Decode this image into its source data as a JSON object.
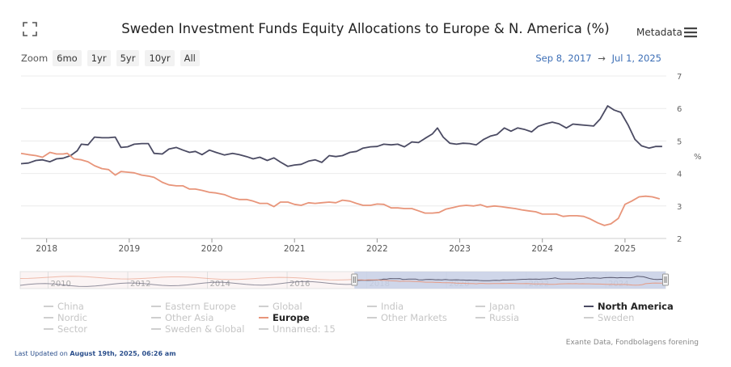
{
  "header": {
    "title": "Sweden Investment Funds Equity Allocations to Europe & N. America (%)",
    "metadata_label": "Metadata"
  },
  "zoom": {
    "label": "Zoom",
    "buttons": [
      "6mo",
      "1yr",
      "5yr",
      "10yr",
      "All"
    ]
  },
  "range": {
    "start": "Sep 8, 2017",
    "arrow": "→",
    "end": "Jul 1, 2025"
  },
  "legend": [
    {
      "label": "China",
      "active": false
    },
    {
      "label": "Eastern Europe",
      "active": false
    },
    {
      "label": "Global",
      "active": false
    },
    {
      "label": "India",
      "active": false
    },
    {
      "label": "Japan",
      "active": false
    },
    {
      "label": "North America",
      "active": true
    },
    {
      "label": "Nordic",
      "active": false
    },
    {
      "label": "Other Asia",
      "active": false
    },
    {
      "label": "Europe",
      "active": true
    },
    {
      "label": "Other Markets",
      "active": false
    },
    {
      "label": "Russia",
      "active": false
    },
    {
      "label": "Sweden",
      "active": false
    },
    {
      "label": "Sector",
      "active": false
    },
    {
      "label": "Sweden & Global",
      "active": false
    },
    {
      "label": "Unnamed: 15",
      "active": false
    }
  ],
  "source": "Exante Data, Fondbolagens forening",
  "last_updated": {
    "prefix": "Last Updated on ",
    "value": "August 19th, 2025, 06:26 am"
  },
  "colors": {
    "north_america": "#4b4b63",
    "europe": "#e8957a",
    "navigator_fill": "#c7d0e6",
    "range_text": "#3d6fb6"
  },
  "chart_data": {
    "type": "line",
    "title": "Sweden Investment Funds Equity Allocations to Europe & N. America (%)",
    "ylabel": "%",
    "ylim": [
      2,
      7
    ],
    "yticks": [
      2,
      3,
      4,
      5,
      6,
      7
    ],
    "xlim": [
      2017.69,
      2025.5
    ],
    "xticks": [
      {
        "v": 2018,
        "label": "2018"
      },
      {
        "v": 2019,
        "label": "2019"
      },
      {
        "v": 2020,
        "label": "2020"
      },
      {
        "v": 2021,
        "label": "2021"
      },
      {
        "v": 2022,
        "label": "2022"
      },
      {
        "v": 2023,
        "label": "2023"
      },
      {
        "v": 2024,
        "label": "2024"
      },
      {
        "v": 2025,
        "label": "2025"
      }
    ],
    "series": [
      {
        "name": "North America",
        "color": "#4b4b63",
        "points": [
          [
            2017.69,
            4.3
          ],
          [
            2017.78,
            4.32
          ],
          [
            2017.87,
            4.4
          ],
          [
            2017.95,
            4.42
          ],
          [
            2018.04,
            4.36
          ],
          [
            2018.12,
            4.45
          ],
          [
            2018.2,
            4.47
          ],
          [
            2018.29,
            4.55
          ],
          [
            2018.37,
            4.7
          ],
          [
            2018.42,
            4.9
          ],
          [
            2018.5,
            4.88
          ],
          [
            2018.58,
            5.12
          ],
          [
            2018.67,
            5.1
          ],
          [
            2018.75,
            5.1
          ],
          [
            2018.83,
            5.12
          ],
          [
            2018.9,
            4.8
          ],
          [
            2018.98,
            4.82
          ],
          [
            2019.06,
            4.9
          ],
          [
            2019.15,
            4.92
          ],
          [
            2019.23,
            4.92
          ],
          [
            2019.3,
            4.62
          ],
          [
            2019.4,
            4.6
          ],
          [
            2019.48,
            4.75
          ],
          [
            2019.57,
            4.8
          ],
          [
            2019.65,
            4.72
          ],
          [
            2019.73,
            4.65
          ],
          [
            2019.8,
            4.68
          ],
          [
            2019.88,
            4.58
          ],
          [
            2019.97,
            4.72
          ],
          [
            2020.05,
            4.65
          ],
          [
            2020.15,
            4.57
          ],
          [
            2020.25,
            4.62
          ],
          [
            2020.33,
            4.58
          ],
          [
            2020.42,
            4.52
          ],
          [
            2020.5,
            4.45
          ],
          [
            2020.58,
            4.5
          ],
          [
            2020.67,
            4.4
          ],
          [
            2020.75,
            4.48
          ],
          [
            2020.83,
            4.35
          ],
          [
            2020.92,
            4.22
          ],
          [
            2021.0,
            4.26
          ],
          [
            2021.08,
            4.28
          ],
          [
            2021.17,
            4.38
          ],
          [
            2021.25,
            4.42
          ],
          [
            2021.33,
            4.34
          ],
          [
            2021.42,
            4.55
          ],
          [
            2021.5,
            4.52
          ],
          [
            2021.58,
            4.55
          ],
          [
            2021.67,
            4.65
          ],
          [
            2021.75,
            4.68
          ],
          [
            2021.83,
            4.78
          ],
          [
            2021.92,
            4.82
          ],
          [
            2022.0,
            4.83
          ],
          [
            2022.08,
            4.9
          ],
          [
            2022.17,
            4.88
          ],
          [
            2022.25,
            4.9
          ],
          [
            2022.33,
            4.82
          ],
          [
            2022.42,
            4.97
          ],
          [
            2022.5,
            4.95
          ],
          [
            2022.58,
            5.08
          ],
          [
            2022.67,
            5.22
          ],
          [
            2022.73,
            5.4
          ],
          [
            2022.8,
            5.12
          ],
          [
            2022.88,
            4.93
          ],
          [
            2022.96,
            4.9
          ],
          [
            2023.04,
            4.93
          ],
          [
            2023.12,
            4.92
          ],
          [
            2023.2,
            4.88
          ],
          [
            2023.29,
            5.05
          ],
          [
            2023.37,
            5.15
          ],
          [
            2023.45,
            5.2
          ],
          [
            2023.54,
            5.4
          ],
          [
            2023.62,
            5.3
          ],
          [
            2023.7,
            5.4
          ],
          [
            2023.79,
            5.35
          ],
          [
            2023.87,
            5.28
          ],
          [
            2023.95,
            5.45
          ],
          [
            2024.04,
            5.53
          ],
          [
            2024.12,
            5.58
          ],
          [
            2024.2,
            5.53
          ],
          [
            2024.29,
            5.4
          ],
          [
            2024.37,
            5.52
          ],
          [
            2024.45,
            5.5
          ],
          [
            2024.54,
            5.48
          ],
          [
            2024.62,
            5.46
          ],
          [
            2024.7,
            5.68
          ],
          [
            2024.79,
            6.08
          ],
          [
            2024.87,
            5.95
          ],
          [
            2024.95,
            5.88
          ],
          [
            2025.04,
            5.48
          ],
          [
            2025.12,
            5.05
          ],
          [
            2025.2,
            4.85
          ],
          [
            2025.29,
            4.78
          ],
          [
            2025.37,
            4.83
          ],
          [
            2025.45,
            4.83
          ]
        ]
      },
      {
        "name": "Europe",
        "color": "#e8957a",
        "points": [
          [
            2017.69,
            4.62
          ],
          [
            2017.78,
            4.58
          ],
          [
            2017.87,
            4.55
          ],
          [
            2017.95,
            4.5
          ],
          [
            2018.04,
            4.65
          ],
          [
            2018.12,
            4.6
          ],
          [
            2018.2,
            4.6
          ],
          [
            2018.25,
            4.62
          ],
          [
            2018.33,
            4.45
          ],
          [
            2018.42,
            4.42
          ],
          [
            2018.5,
            4.36
          ],
          [
            2018.58,
            4.24
          ],
          [
            2018.67,
            4.15
          ],
          [
            2018.75,
            4.12
          ],
          [
            2018.83,
            3.95
          ],
          [
            2018.9,
            4.06
          ],
          [
            2018.98,
            4.04
          ],
          [
            2019.06,
            4.02
          ],
          [
            2019.15,
            3.95
          ],
          [
            2019.23,
            3.92
          ],
          [
            2019.3,
            3.88
          ],
          [
            2019.4,
            3.73
          ],
          [
            2019.48,
            3.65
          ],
          [
            2019.57,
            3.62
          ],
          [
            2019.65,
            3.62
          ],
          [
            2019.73,
            3.52
          ],
          [
            2019.8,
            3.52
          ],
          [
            2019.88,
            3.48
          ],
          [
            2019.97,
            3.42
          ],
          [
            2020.05,
            3.4
          ],
          [
            2020.15,
            3.35
          ],
          [
            2020.25,
            3.25
          ],
          [
            2020.33,
            3.2
          ],
          [
            2020.42,
            3.2
          ],
          [
            2020.5,
            3.15
          ],
          [
            2020.58,
            3.08
          ],
          [
            2020.67,
            3.08
          ],
          [
            2020.75,
            2.98
          ],
          [
            2020.83,
            3.12
          ],
          [
            2020.92,
            3.12
          ],
          [
            2021.0,
            3.05
          ],
          [
            2021.08,
            3.02
          ],
          [
            2021.17,
            3.1
          ],
          [
            2021.25,
            3.08
          ],
          [
            2021.33,
            3.1
          ],
          [
            2021.42,
            3.12
          ],
          [
            2021.5,
            3.1
          ],
          [
            2021.58,
            3.18
          ],
          [
            2021.67,
            3.15
          ],
          [
            2021.75,
            3.08
          ],
          [
            2021.83,
            3.02
          ],
          [
            2021.92,
            3.02
          ],
          [
            2022.0,
            3.06
          ],
          [
            2022.08,
            3.05
          ],
          [
            2022.17,
            2.94
          ],
          [
            2022.25,
            2.94
          ],
          [
            2022.33,
            2.92
          ],
          [
            2022.42,
            2.92
          ],
          [
            2022.5,
            2.85
          ],
          [
            2022.58,
            2.78
          ],
          [
            2022.67,
            2.78
          ],
          [
            2022.75,
            2.8
          ],
          [
            2022.83,
            2.9
          ],
          [
            2022.92,
            2.95
          ],
          [
            2023.0,
            3.0
          ],
          [
            2023.08,
            3.02
          ],
          [
            2023.17,
            3.0
          ],
          [
            2023.25,
            3.04
          ],
          [
            2023.33,
            2.97
          ],
          [
            2023.42,
            3.0
          ],
          [
            2023.5,
            2.98
          ],
          [
            2023.58,
            2.95
          ],
          [
            2023.67,
            2.92
          ],
          [
            2023.75,
            2.88
          ],
          [
            2023.83,
            2.85
          ],
          [
            2023.92,
            2.82
          ],
          [
            2024.0,
            2.75
          ],
          [
            2024.08,
            2.75
          ],
          [
            2024.17,
            2.75
          ],
          [
            2024.25,
            2.68
          ],
          [
            2024.33,
            2.7
          ],
          [
            2024.42,
            2.7
          ],
          [
            2024.5,
            2.68
          ],
          [
            2024.58,
            2.6
          ],
          [
            2024.67,
            2.48
          ],
          [
            2024.75,
            2.4
          ],
          [
            2024.83,
            2.45
          ],
          [
            2024.92,
            2.62
          ],
          [
            2025.0,
            3.05
          ],
          [
            2025.08,
            3.15
          ],
          [
            2025.17,
            3.28
          ],
          [
            2025.25,
            3.3
          ],
          [
            2025.33,
            3.28
          ],
          [
            2025.42,
            3.22
          ]
        ]
      }
    ],
    "navigator": {
      "xlim": [
        2009.3,
        2025.5
      ],
      "xticks": [
        {
          "v": 2010,
          "label": "2010"
        },
        {
          "v": 2012,
          "label": "2012"
        },
        {
          "v": 2014,
          "label": "2014"
        },
        {
          "v": 2016,
          "label": "2016"
        },
        {
          "v": 2018,
          "label": "2018"
        },
        {
          "v": 2020,
          "label": "2020"
        },
        {
          "v": 2022,
          "label": "2022"
        },
        {
          "v": 2024,
          "label": "2024"
        }
      ],
      "selected": [
        2017.69,
        2025.5
      ]
    }
  }
}
